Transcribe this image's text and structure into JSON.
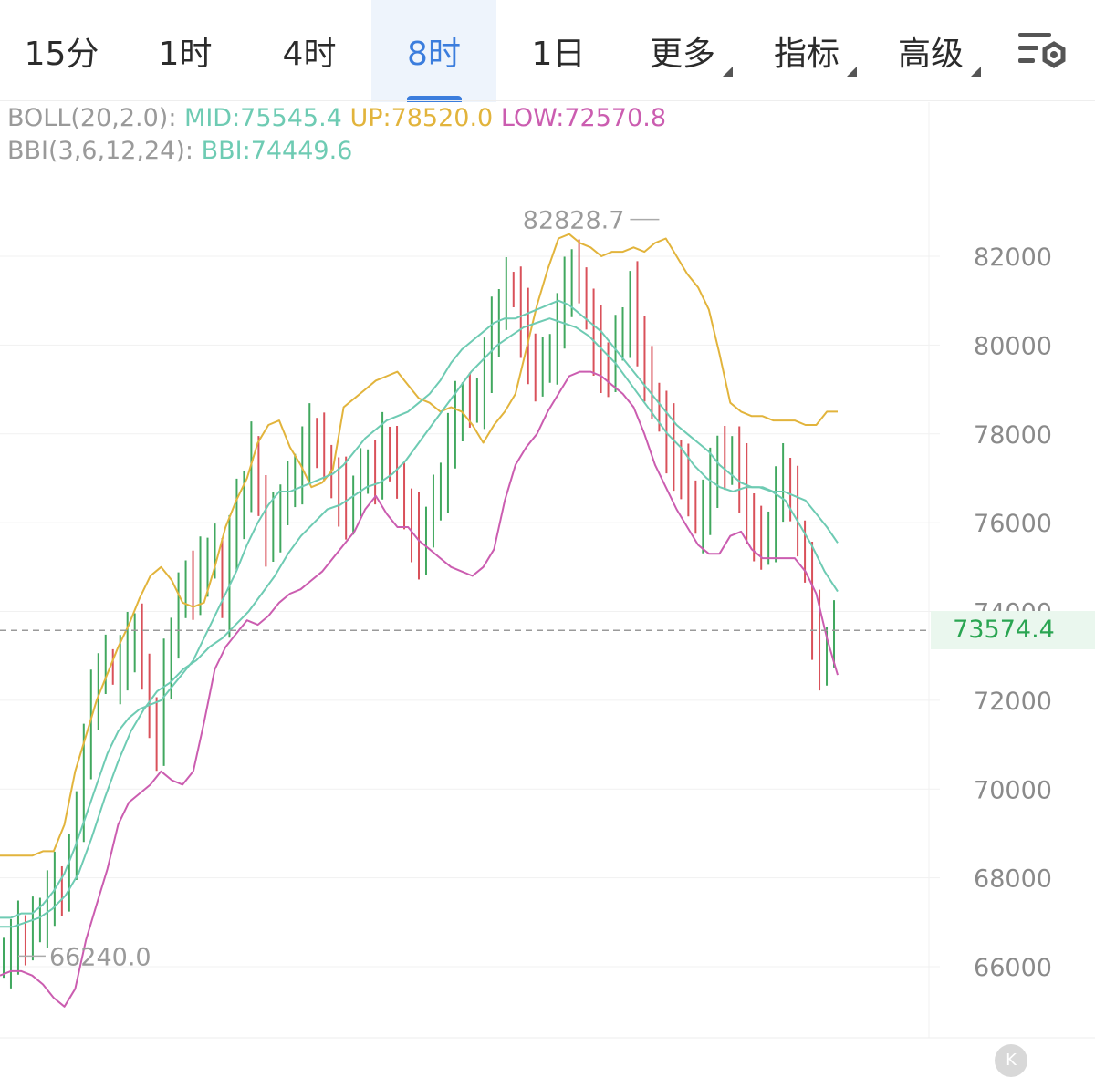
{
  "tabs": [
    {
      "label": "15分",
      "active": false,
      "has_arrow": false
    },
    {
      "label": "1时",
      "active": false,
      "has_arrow": false
    },
    {
      "label": "4时",
      "active": false,
      "has_arrow": false
    },
    {
      "label": "8时",
      "active": true,
      "has_arrow": false
    },
    {
      "label": "1日",
      "active": false,
      "has_arrow": false
    },
    {
      "label": "更多",
      "active": false,
      "has_arrow": true
    },
    {
      "label": "指标",
      "active": false,
      "has_arrow": true
    },
    {
      "label": "高级",
      "active": false,
      "has_arrow": true
    }
  ],
  "settings_icon": "chart-settings-gear-icon",
  "legend": {
    "boll": {
      "name": "BOLL(20,2.0):",
      "mid": "MID:75545.4",
      "up": "UP:78520.0",
      "low": "LOW:72570.8"
    },
    "bbi": {
      "name": "BBI(3,6,12,24):",
      "value": "BBI:74449.6"
    }
  },
  "last_price": "73574.4",
  "k_button": "K",
  "colors": {
    "up_candle": "#41a85f",
    "down_candle": "#d9515a",
    "boll_mid": "#6ecbb3",
    "boll_up": "#e2b43c",
    "boll_low": "#cb5db0",
    "bbi": "#6ecbb3",
    "accent": "#3b7ddd"
  },
  "chart_data": {
    "type": "candlestick",
    "interval": "8时",
    "y_range": [
      64500,
      84000
    ],
    "y_ticks": [
      66000,
      68000,
      70000,
      72000,
      74000,
      76000,
      78000,
      80000,
      82000
    ],
    "y_tick_labels": [
      "66000",
      "68000",
      "70000",
      "72000",
      "74000",
      "76000",
      "78000",
      "80000",
      "82000"
    ],
    "grid": true,
    "max_marker": {
      "label": "82828.7",
      "value": 82828.7,
      "index": 90
    },
    "min_marker": {
      "label": "66240.0",
      "value": 66240.0,
      "index": 2
    },
    "last_price": 73574.4,
    "close_series": [
      66300,
      66500,
      66700,
      66600,
      66900,
      67200,
      67600,
      67800,
      67700,
      68300,
      69600,
      70900,
      71900,
      72600,
      72800,
      72700,
      72900,
      73200,
      73500,
      72700,
      71500,
      71200,
      72600,
      73400,
      74200,
      74800,
      74600,
      74900,
      75200,
      75300,
      74200,
      75600,
      76200,
      76700,
      77600,
      76500,
      75800,
      75900,
      76400,
      76700,
      77200,
      77600,
      77900,
      77800,
      77400,
      76900,
      76700,
      76300,
      76600,
      77000,
      77300,
      77200,
      77700,
      77500,
      77000,
      76200,
      75900,
      75400,
      75900,
      76400,
      77000,
      77900,
      78400,
      78700,
      78600,
      78900,
      79600,
      80300,
      80800,
      81300,
      81200,
      80500,
      79800,
      79300,
      79500,
      79900,
      80600,
      81200,
      81700,
      81400,
      80700,
      80100,
      79600,
      79400,
      80000,
      80500,
      81100,
      80200,
      79300,
      78800,
      78400,
      77900,
      77400,
      77100,
      76600,
      76100,
      76400,
      76900,
      77500,
      77200,
      77600,
      77000,
      76200,
      75700,
      75400,
      75900,
      76700,
      77000,
      76600,
      75700,
      75000,
      73700,
      72900,
      73200,
      73574.4
    ],
    "boll_up": [
      68500,
      68500,
      68500,
      68500,
      68600,
      68600,
      69200,
      70400,
      71200,
      72000,
      72600,
      73200,
      73700,
      74300,
      74800,
      75000,
      74700,
      74200,
      74100,
      74200,
      75000,
      75900,
      76500,
      77000,
      77800,
      78200,
      78300,
      77700,
      77300,
      76800,
      76900,
      77200,
      78600,
      78800,
      79000,
      79200,
      79300,
      79400,
      79100,
      78800,
      78700,
      78500,
      78600,
      78500,
      78200,
      77800,
      78200,
      78500,
      78900,
      79900,
      80900,
      81700,
      82400,
      82500,
      82300,
      82200,
      82000,
      82100,
      82100,
      82200,
      82100,
      82300,
      82400,
      82000,
      81600,
      81300,
      80800,
      79800,
      78700,
      78500,
      78400,
      78400,
      78300,
      78300,
      78300,
      78200,
      78200,
      78500,
      78500
    ],
    "boll_mid": [
      67100,
      67100,
      67200,
      67200,
      67400,
      67700,
      68100,
      68700,
      69400,
      70100,
      70800,
      71300,
      71600,
      71800,
      71900,
      72000,
      72300,
      72600,
      72900,
      73400,
      73900,
      74400,
      74900,
      75500,
      76000,
      76400,
      76700,
      76700,
      76800,
      76900,
      77000,
      77100,
      77300,
      77600,
      77900,
      78100,
      78300,
      78400,
      78500,
      78700,
      78900,
      79200,
      79600,
      79900,
      80100,
      80300,
      80500,
      80600,
      80600,
      80700,
      80800,
      80900,
      81000,
      80900,
      80700,
      80500,
      80300,
      80000,
      79700,
      79400,
      79100,
      78800,
      78500,
      78200,
      78000,
      77800,
      77600,
      77300,
      77100,
      76900,
      76800,
      76800,
      76700,
      76700,
      76600,
      76500,
      76200,
      75900,
      75545.4
    ],
    "boll_low": [
      65800,
      65900,
      65900,
      65800,
      65600,
      65300,
      65100,
      65500,
      66600,
      67400,
      68200,
      69200,
      69700,
      69900,
      70100,
      70400,
      70200,
      70100,
      70400,
      71500,
      72700,
      73200,
      73500,
      73800,
      73700,
      73900,
      74200,
      74400,
      74500,
      74700,
      74900,
      75200,
      75500,
      75800,
      76300,
      76600,
      76200,
      75900,
      75900,
      75600,
      75400,
      75200,
      75000,
      74900,
      74800,
      75000,
      75400,
      76500,
      77300,
      77700,
      78000,
      78500,
      78900,
      79300,
      79400,
      79400,
      79300,
      79100,
      78900,
      78600,
      78000,
      77300,
      76800,
      76300,
      75900,
      75500,
      75300,
      75300,
      75700,
      75800,
      75400,
      75200,
      75200,
      75200,
      75200,
      74900,
      74400,
      73400,
      72570.8
    ],
    "bbi": [
      66900,
      66900,
      67000,
      67100,
      67300,
      67600,
      68100,
      68900,
      69800,
      70600,
      71300,
      71800,
      72200,
      72400,
      72700,
      72900,
      73200,
      73400,
      73700,
      74000,
      74400,
      74800,
      75300,
      75700,
      76000,
      76300,
      76400,
      76600,
      76800,
      76900,
      77100,
      77400,
      77800,
      78200,
      78600,
      79000,
      79400,
      79700,
      80000,
      80200,
      80400,
      80500,
      80600,
      80500,
      80400,
      80200,
      79900,
      79600,
      79200,
      78800,
      78400,
      78000,
      77700,
      77300,
      77000,
      76800,
      76700,
      76800,
      76800,
      76700,
      76500,
      76000,
      75500,
      74900,
      74449.6
    ]
  }
}
